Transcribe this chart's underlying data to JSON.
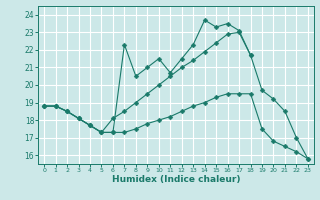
{
  "bg_color": "#cce8e8",
  "grid_color": "#ffffff",
  "line_color": "#1a7a6a",
  "xlabel": "Humidex (Indice chaleur)",
  "xlim": [
    -0.5,
    23.5
  ],
  "ylim": [
    15.5,
    24.5
  ],
  "yticks": [
    16,
    17,
    18,
    19,
    20,
    21,
    22,
    23,
    24
  ],
  "xticks": [
    0,
    1,
    2,
    3,
    4,
    5,
    6,
    7,
    8,
    9,
    10,
    11,
    12,
    13,
    14,
    15,
    16,
    17,
    18,
    19,
    20,
    21,
    22,
    23
  ],
  "lines": [
    {
      "x": [
        0,
        1,
        2,
        3,
        4,
        5,
        6,
        7,
        8,
        9,
        10,
        11,
        12,
        13,
        14,
        15,
        16,
        17,
        18
      ],
      "y": [
        18.8,
        18.8,
        18.5,
        18.1,
        17.7,
        17.3,
        17.3,
        22.3,
        20.5,
        21.0,
        21.5,
        20.7,
        21.5,
        22.3,
        23.7,
        23.3,
        23.5,
        23.1,
        21.7
      ]
    },
    {
      "x": [
        0,
        1,
        2,
        3,
        4,
        5,
        6,
        7,
        8,
        9,
        10,
        11,
        12,
        13,
        14,
        15,
        16,
        17,
        18,
        19,
        20,
        21,
        22,
        23
      ],
      "y": [
        18.8,
        18.8,
        18.5,
        18.1,
        17.7,
        17.3,
        18.1,
        18.5,
        19.0,
        19.5,
        20.0,
        20.5,
        21.0,
        21.4,
        21.9,
        22.4,
        22.9,
        23.0,
        21.7,
        19.7,
        19.2,
        18.5,
        17.0,
        15.8
      ]
    },
    {
      "x": [
        0,
        1,
        2,
        3,
        4,
        5,
        6,
        7,
        8,
        9,
        10,
        11,
        12,
        13,
        14,
        15,
        16,
        17,
        18,
        19,
        20,
        21,
        22,
        23
      ],
      "y": [
        18.8,
        18.8,
        18.5,
        18.1,
        17.7,
        17.3,
        17.3,
        17.3,
        17.5,
        17.8,
        18.0,
        18.2,
        18.5,
        18.8,
        19.0,
        19.3,
        19.5,
        19.5,
        19.5,
        17.5,
        16.8,
        16.5,
        16.2,
        15.8
      ]
    }
  ]
}
